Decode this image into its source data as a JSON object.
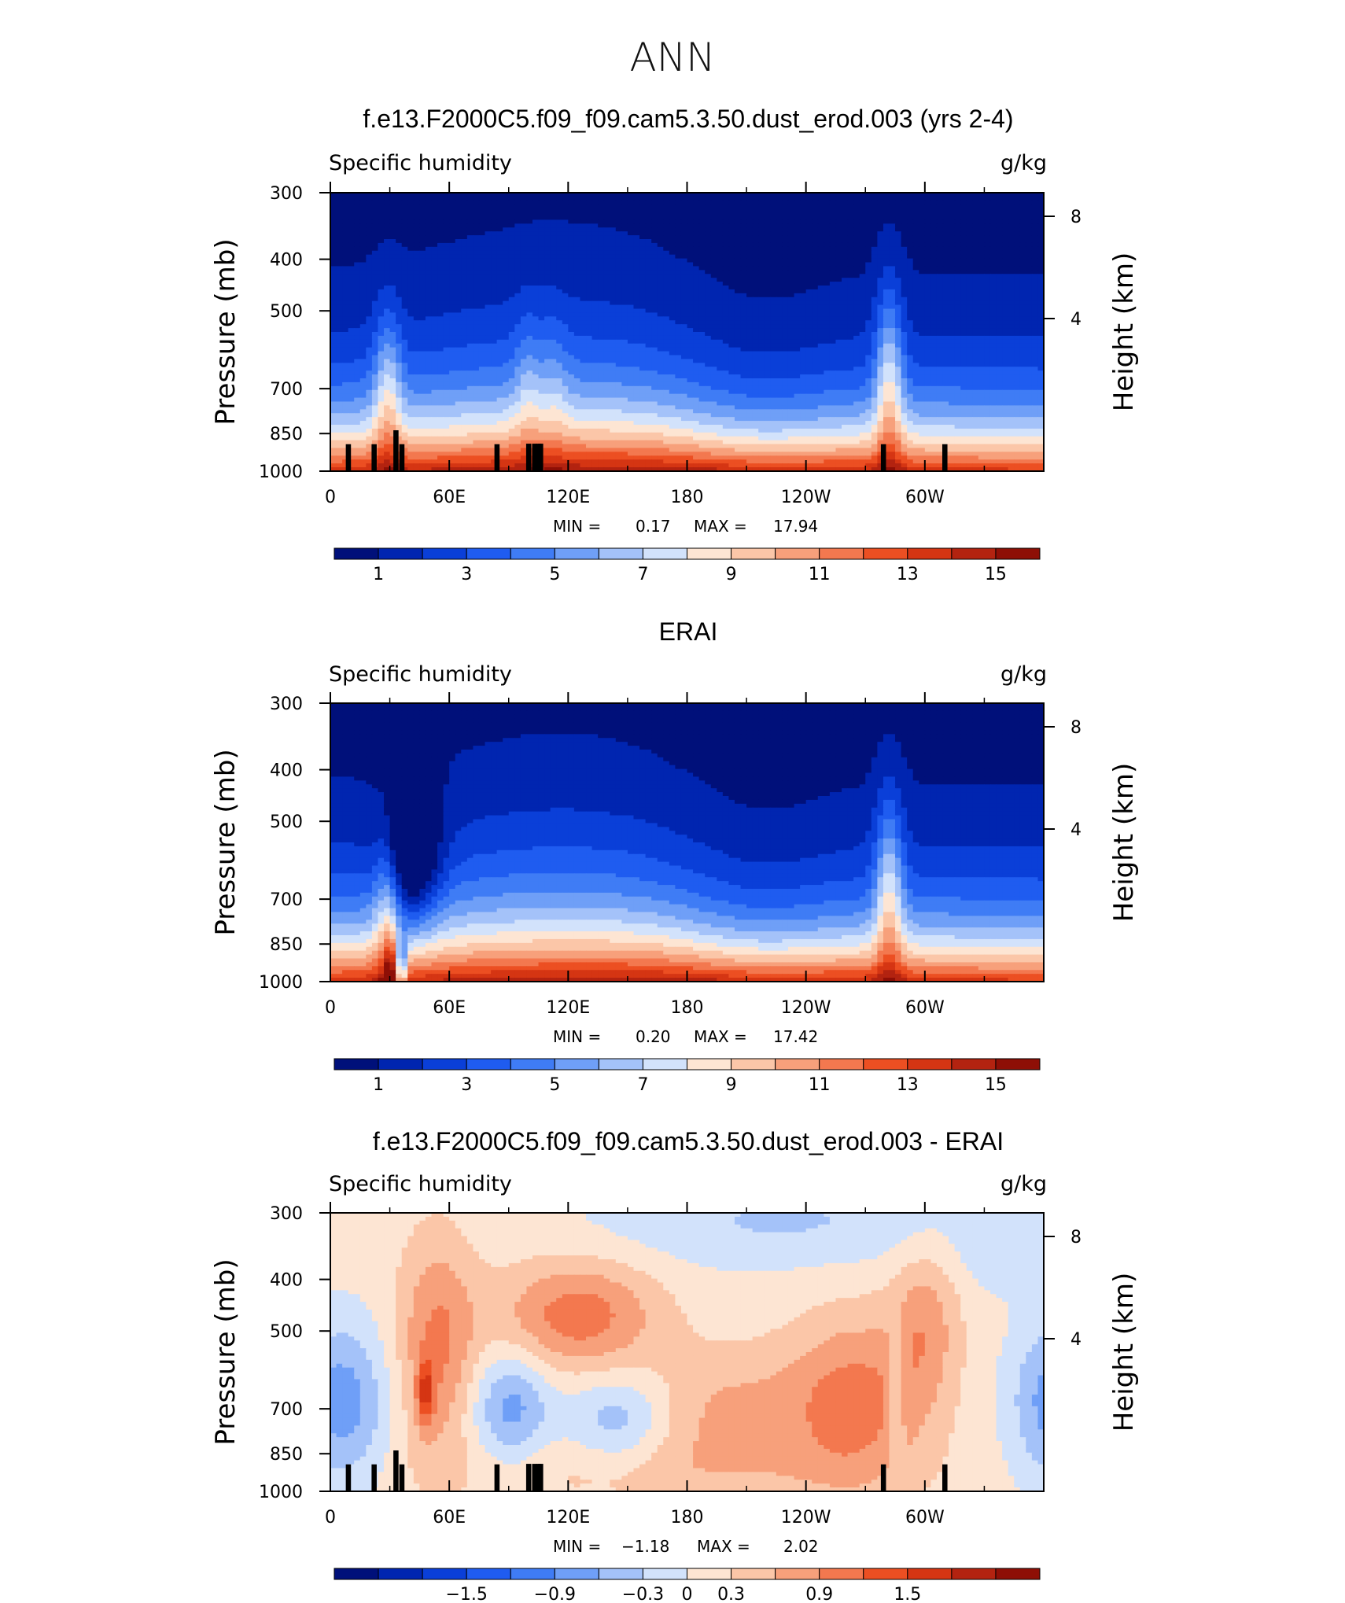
{
  "figure": {
    "title": "ANN"
  },
  "chart_data": [
    {
      "type": "heatmap",
      "title": "f.e13.F2000C5.f09_f09.cam5.3.50.dust_erod.003 (yrs 2-4)",
      "left_label": "Specific humidity",
      "right_label": "g/kg",
      "ylabel": "Pressure (mb)",
      "ylabel_right": "Height (km)",
      "x_ticks": [
        "0",
        "60E",
        "120E",
        "180",
        "120W",
        "60W"
      ],
      "y_ticks": [
        "300",
        "400",
        "500",
        "700",
        "850",
        "1000"
      ],
      "y_ticks_right": [
        "8",
        "4"
      ],
      "xlim": [
        0,
        360
      ],
      "ylim": [
        1000,
        300
      ],
      "stats": {
        "min_label": "MIN =",
        "min": "0.17",
        "max_label": "MAX =",
        "max": "17.94"
      },
      "colorbar": {
        "labels": [
          "1",
          "3",
          "5",
          "7",
          "9",
          "11",
          "13",
          "15"
        ],
        "levels": [
          0,
          1,
          2,
          3,
          4,
          5,
          6,
          7,
          8,
          9,
          10,
          11,
          12,
          13,
          14,
          15,
          16
        ]
      },
      "colors": [
        "#00107a",
        "#0025b0",
        "#0a3fd8",
        "#1f5cf0",
        "#3f7cf5",
        "#6f9ff7",
        "#a4c2f9",
        "#d2e2fb",
        "#fde5d3",
        "#fbc6a8",
        "#f7a07b",
        "#f3784f",
        "#ec4f22",
        "#d53513",
        "#b32310",
        "#8e0f06"
      ],
      "mask": [
        [
          9,
          890,
          1000
        ],
        [
          22,
          890,
          1000
        ],
        [
          33,
          838,
          1000
        ],
        [
          36,
          890,
          1000
        ],
        [
          84,
          890,
          1000
        ],
        [
          100,
          888,
          1000
        ],
        [
          103,
          888,
          1000
        ],
        [
          105,
          888,
          1000
        ],
        [
          106,
          888,
          1000
        ],
        [
          279,
          890,
          1000
        ],
        [
          310,
          890,
          1000
        ]
      ],
      "min": 0.17,
      "max": 17.94
    },
    {
      "type": "heatmap",
      "title": "ERAI",
      "left_label": "Specific humidity",
      "right_label": "g/kg",
      "ylabel": "Pressure (mb)",
      "ylabel_right": "Height (km)",
      "x_ticks": [
        "0",
        "60E",
        "120E",
        "180",
        "120W",
        "60W"
      ],
      "y_ticks": [
        "300",
        "400",
        "500",
        "700",
        "850",
        "1000"
      ],
      "y_ticks_right": [
        "8",
        "4"
      ],
      "xlim": [
        0,
        360
      ],
      "ylim": [
        1000,
        300
      ],
      "stats": {
        "min_label": "MIN =",
        "min": "0.20",
        "max_label": "MAX =",
        "max": "17.42"
      },
      "colorbar": {
        "labels": [
          "1",
          "3",
          "5",
          "7",
          "9",
          "11",
          "13",
          "15"
        ],
        "levels": [
          0,
          1,
          2,
          3,
          4,
          5,
          6,
          7,
          8,
          9,
          10,
          11,
          12,
          13,
          14,
          15,
          16
        ]
      },
      "colors": [
        "#00107a",
        "#0025b0",
        "#0a3fd8",
        "#1f5cf0",
        "#3f7cf5",
        "#6f9ff7",
        "#a4c2f9",
        "#d2e2fb",
        "#fde5d3",
        "#fbc6a8",
        "#f7a07b",
        "#f3784f",
        "#ec4f22",
        "#d53513",
        "#b32310",
        "#8e0f06"
      ],
      "mask": [],
      "min": 0.2,
      "max": 17.42
    },
    {
      "type": "heatmap",
      "title": "f.e13.F2000C5.f09_f09.cam5.3.50.dust_erod.003 - ERAI",
      "left_label": "Specific humidity",
      "right_label": "g/kg",
      "ylabel": "Pressure (mb)",
      "ylabel_right": "Height (km)",
      "x_ticks": [
        "0",
        "60E",
        "120E",
        "180",
        "120W",
        "60W"
      ],
      "y_ticks": [
        "300",
        "400",
        "500",
        "700",
        "850",
        "1000"
      ],
      "y_ticks_right": [
        "8",
        "4"
      ],
      "xlim": [
        0,
        360
      ],
      "ylim": [
        1000,
        300
      ],
      "stats": {
        "min_label": "MIN =",
        "min": "−1.18",
        "max_label": "MAX =",
        "max": "2.02"
      },
      "colorbar": {
        "labels": [
          "−1.5",
          "−0.9",
          "−0.3",
          "0",
          "0.3",
          "0.9",
          "1.5"
        ],
        "levels": [
          -2.4,
          -2.1,
          -1.8,
          -1.5,
          -1.2,
          -0.9,
          -0.6,
          -0.3,
          0,
          0.3,
          0.6,
          0.9,
          1.2,
          1.5,
          1.8,
          2.1,
          2.4
        ]
      },
      "colors": [
        "#00107a",
        "#0025b0",
        "#0a3fd8",
        "#1f5cf0",
        "#3f7cf5",
        "#6f9ff7",
        "#a4c2f9",
        "#d2e2fb",
        "#fde5d3",
        "#fbc6a8",
        "#f7a07b",
        "#f3784f",
        "#ec4f22",
        "#d53513",
        "#b32310",
        "#8e0f06"
      ],
      "mask": [
        [
          9,
          890,
          1000
        ],
        [
          22,
          890,
          1000
        ],
        [
          33,
          838,
          1000
        ],
        [
          36,
          890,
          1000
        ],
        [
          84,
          890,
          1000
        ],
        [
          100,
          888,
          1000
        ],
        [
          103,
          888,
          1000
        ],
        [
          105,
          888,
          1000
        ],
        [
          106,
          888,
          1000
        ],
        [
          279,
          890,
          1000
        ],
        [
          310,
          890,
          1000
        ]
      ],
      "min": -1.18,
      "max": 2.02
    }
  ]
}
